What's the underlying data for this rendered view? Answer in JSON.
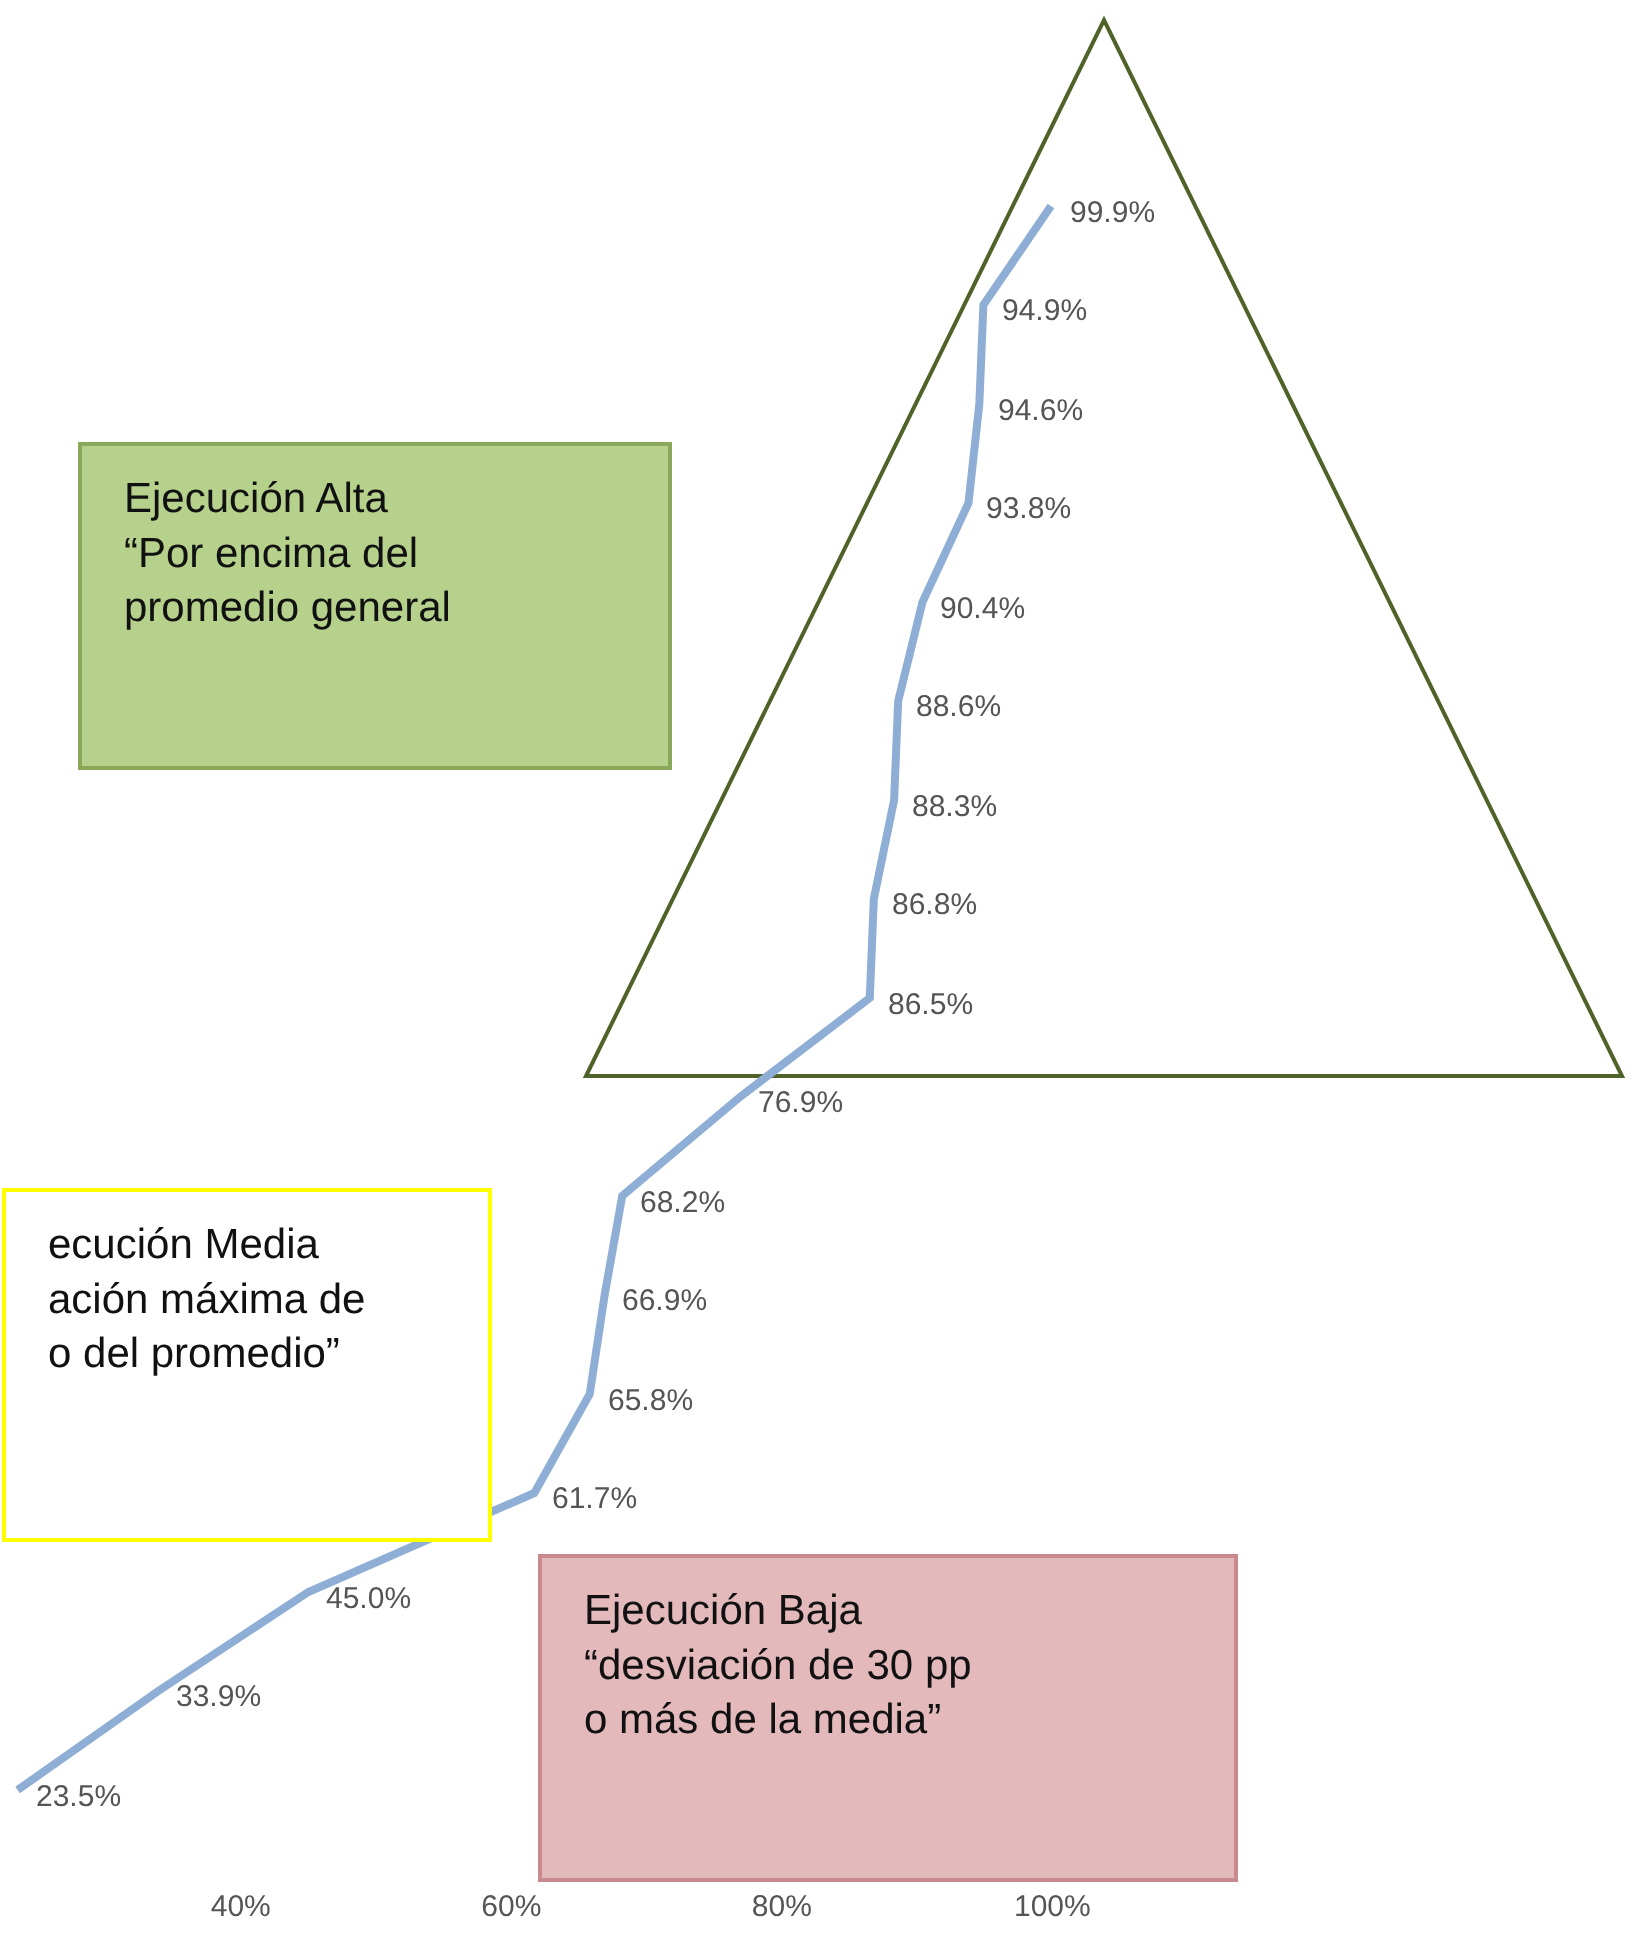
{
  "chart_data": {
    "type": "line",
    "orientation": "horizontal",
    "categories": [
      null,
      null,
      null,
      null,
      null,
      null,
      null,
      null,
      null,
      null,
      null,
      null,
      null,
      null,
      null,
      null,
      null
    ],
    "series": [
      {
        "color": "#8eaed6",
        "values": [
          99.9,
          94.9,
          94.6,
          93.8,
          90.4,
          88.6,
          88.3,
          86.8,
          86.5,
          76.9,
          68.2,
          66.9,
          65.8,
          61.7,
          45.0,
          33.9,
          23.5
        ],
        "value_labels": [
          "99.9%",
          "94.9%",
          "94.6%",
          "93.8%",
          "90.4%",
          "88.6%",
          "88.3%",
          "86.8%",
          "86.5%",
          "76.9%",
          "68.2%",
          "66.9%",
          "65.8%",
          "61.7%",
          "45.0%",
          "33.9%",
          "23.5%"
        ]
      }
    ],
    "xlim": [
      22.2,
      143.0
    ],
    "xticks": [
      {
        "value": 40,
        "label": "40%"
      },
      {
        "value": 60,
        "label": "60%"
      },
      {
        "value": 80,
        "label": "80%"
      },
      {
        "value": 100,
        "label": "100%"
      }
    ],
    "grid": false,
    "legend": false,
    "marker": "none",
    "line_style": "solid",
    "annotations": [
      "Ejecución Alta\n“Por encima del\npromedio general",
      "ecución Media\nación máxima de\no del promedio”",
      "Ejecución Baja\n“desviación de 30 pp\no más de la media”"
    ]
  }
}
